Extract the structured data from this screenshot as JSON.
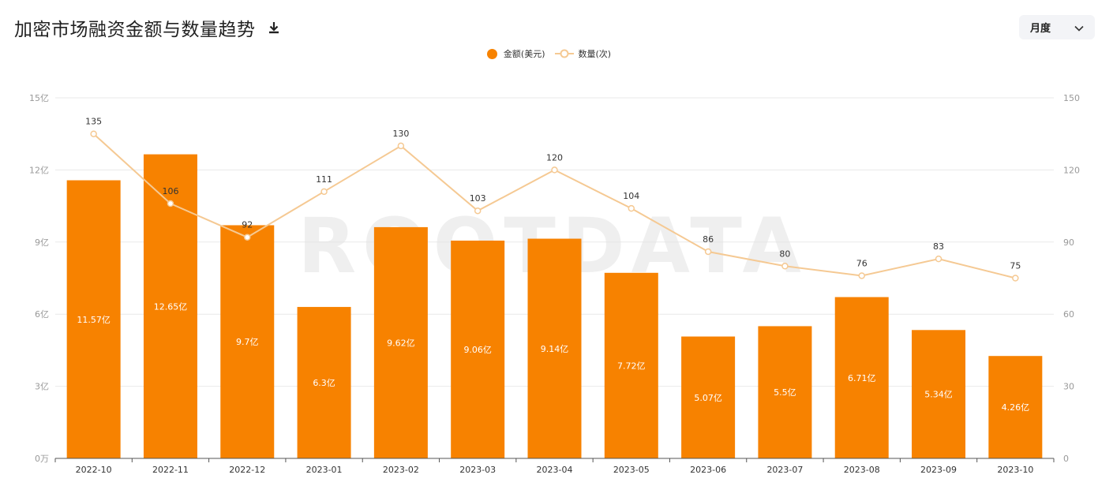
{
  "header": {
    "title": "加密市场融资金额与数量趋势",
    "download_icon": "download-icon",
    "period_select": {
      "value": "月度",
      "icon": "chevron-down-icon"
    }
  },
  "legend": {
    "amount": "金额(美元)",
    "count": "数量(次)"
  },
  "watermark": "ROOTDATA",
  "colors": {
    "bar": "#f78200",
    "line": "#f5c993",
    "grid": "#e9e9e9",
    "axis": "#999999"
  },
  "chart_data": {
    "type": "bar",
    "categories": [
      "2022-10",
      "2022-11",
      "2022-12",
      "2023-01",
      "2023-02",
      "2023-03",
      "2023-04",
      "2023-05",
      "2023-06",
      "2023-07",
      "2023-08",
      "2023-09",
      "2023-10"
    ],
    "series": [
      {
        "name": "金额(美元)",
        "type": "bar",
        "axis": "left",
        "values": [
          11.57,
          12.65,
          9.7,
          6.3,
          9.62,
          9.06,
          9.14,
          7.72,
          5.07,
          5.5,
          6.71,
          5.34,
          4.26
        ],
        "labels": [
          "11.57亿",
          "12.65亿",
          "9.7亿",
          "6.3亿",
          "9.62亿",
          "9.06亿",
          "9.14亿",
          "7.72亿",
          "5.07亿",
          "5.5亿",
          "6.71亿",
          "5.34亿",
          "4.26亿"
        ]
      },
      {
        "name": "数量(次)",
        "type": "line",
        "axis": "right",
        "values": [
          135,
          106,
          92,
          111,
          130,
          103,
          120,
          104,
          86,
          80,
          76,
          83,
          75
        ]
      }
    ],
    "y_left": {
      "range": [
        0,
        15
      ],
      "ticks": [
        0,
        3,
        6,
        9,
        12,
        15
      ],
      "tick_labels": [
        "0万",
        "3亿",
        "6亿",
        "9亿",
        "12亿",
        "15亿"
      ]
    },
    "y_right": {
      "range": [
        0,
        150
      ],
      "ticks": [
        0,
        30,
        60,
        90,
        120,
        150
      ],
      "tick_labels": [
        "0",
        "30",
        "60",
        "90",
        "120",
        "150"
      ]
    },
    "grid": true,
    "legend_position": "top-center"
  }
}
